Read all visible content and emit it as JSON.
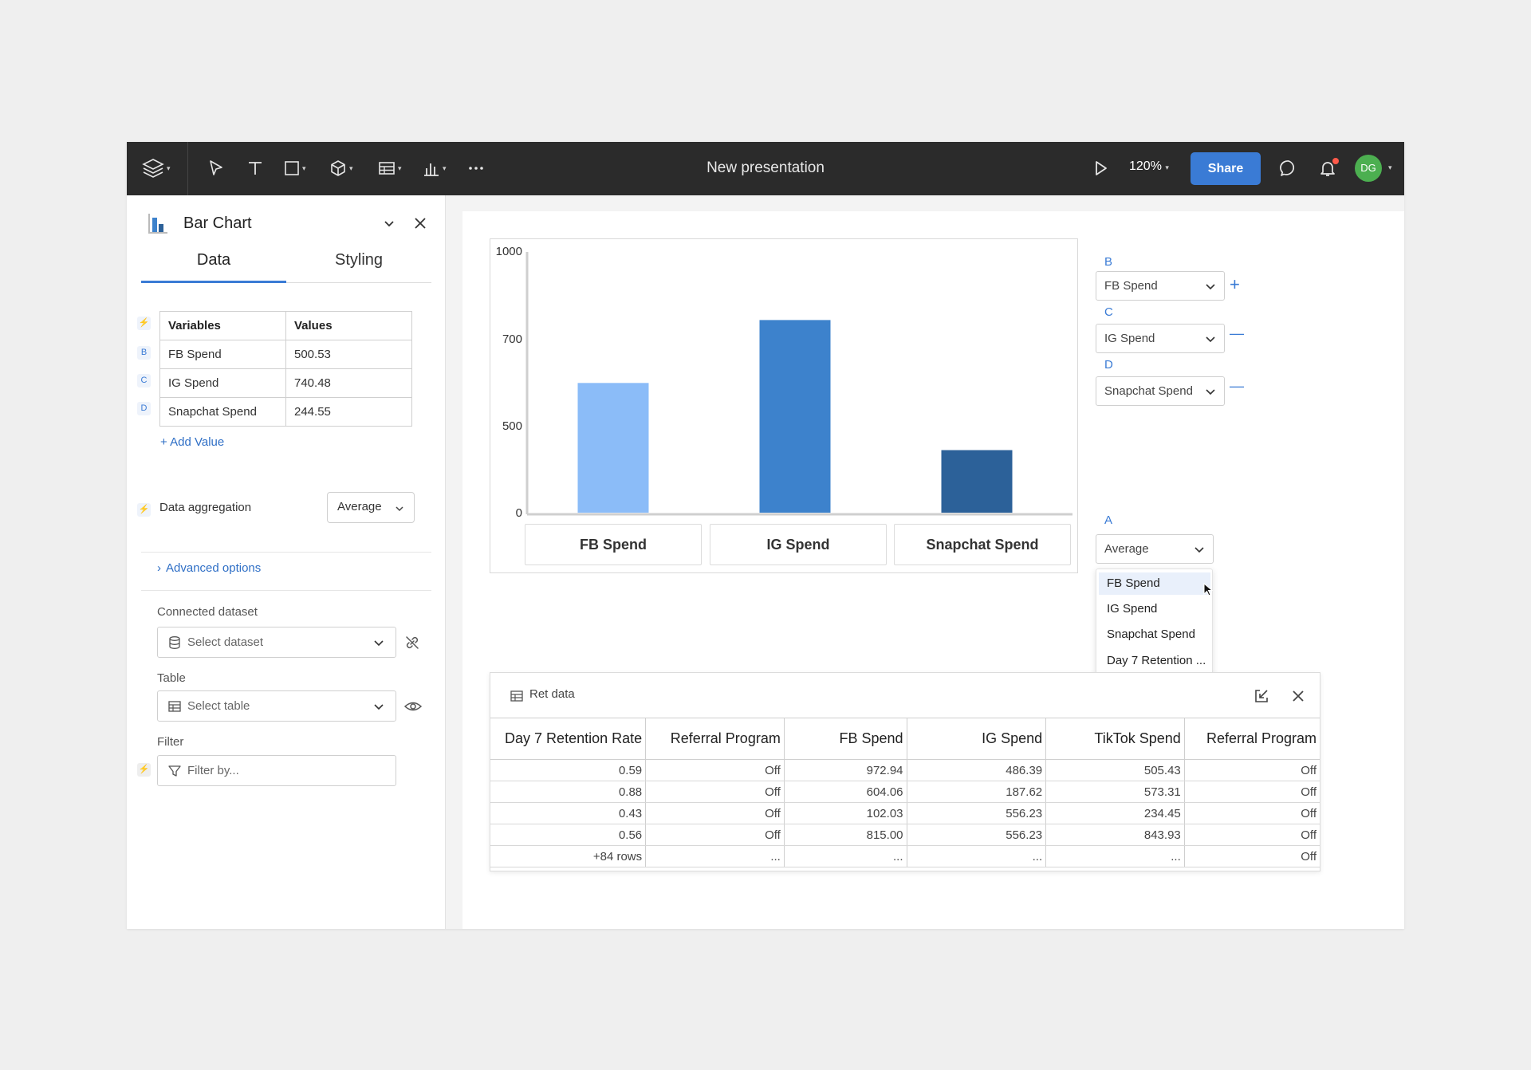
{
  "topbar": {
    "title": "New presentation",
    "zoom": "120%",
    "share_label": "Share",
    "avatar_initials": "DG",
    "accent": "#3a7bd5"
  },
  "panel": {
    "title": "Bar Chart",
    "tabs": [
      "Data",
      "Styling"
    ],
    "active_tab": "Data",
    "variables_table": {
      "headers": [
        "Variables",
        "Values"
      ],
      "rows": [
        {
          "tag": "B",
          "name": "FB Spend",
          "value": "500.53"
        },
        {
          "tag": "C",
          "name": "IG Spend",
          "value": "740.48"
        },
        {
          "tag": "D",
          "name": "Snapchat Spend",
          "value": "244.55"
        }
      ]
    },
    "add_value_label": "+ Add Value",
    "aggregation_label": "Data aggregation",
    "aggregation_value": "Average",
    "advanced_label": "Advanced options",
    "connected_dataset_label": "Connected dataset",
    "dataset_placeholder": "Select dataset",
    "table_label": "Table",
    "table_placeholder": "Select table",
    "filter_label": "Filter",
    "filter_placeholder": "Filter by..."
  },
  "chart_data": {
    "type": "bar",
    "categories": [
      "FB Spend",
      "IG Spend",
      "Snapchat Spend"
    ],
    "values": [
      500.53,
      740.48,
      244.55
    ],
    "colors": [
      "#8bbcf8",
      "#3d82cc",
      "#2c6199"
    ],
    "ylim": [
      0,
      1000
    ],
    "yticks": [
      0,
      500,
      700,
      1000
    ],
    "title": "",
    "xlabel": "",
    "ylabel": ""
  },
  "mapping": {
    "rows": [
      {
        "label": "B",
        "value": "FB Spend",
        "action": "+"
      },
      {
        "label": "C",
        "value": "IG Spend",
        "action": "—"
      },
      {
        "label": "D",
        "value": "Snapchat Spend",
        "action": "—"
      }
    ],
    "aggregate": {
      "label": "A",
      "value": "Average"
    },
    "dropdown_options": [
      "FB Spend",
      "IG Spend",
      "Snapchat Spend",
      "Day 7 Retention ..."
    ],
    "dropdown_active": "FB Spend"
  },
  "data_panel": {
    "title": "Ret data",
    "headers": [
      "Day 7 Retention Rate",
      "Referral Program",
      "FB Spend",
      "IG Spend",
      "TikTok Spend",
      "Referral Program"
    ],
    "rows": [
      [
        "0.59",
        "Off",
        "972.94",
        "486.39",
        "505.43",
        "Off"
      ],
      [
        "0.88",
        "Off",
        "604.06",
        "187.62",
        "573.31",
        "Off"
      ],
      [
        "0.43",
        "Off",
        "102.03",
        "556.23",
        "234.45",
        "Off"
      ],
      [
        "0.56",
        "Off",
        "815.00",
        "556.23",
        "843.93",
        "Off"
      ],
      [
        "+84 rows",
        "...",
        "...",
        "...",
        "...",
        "Off"
      ]
    ]
  }
}
